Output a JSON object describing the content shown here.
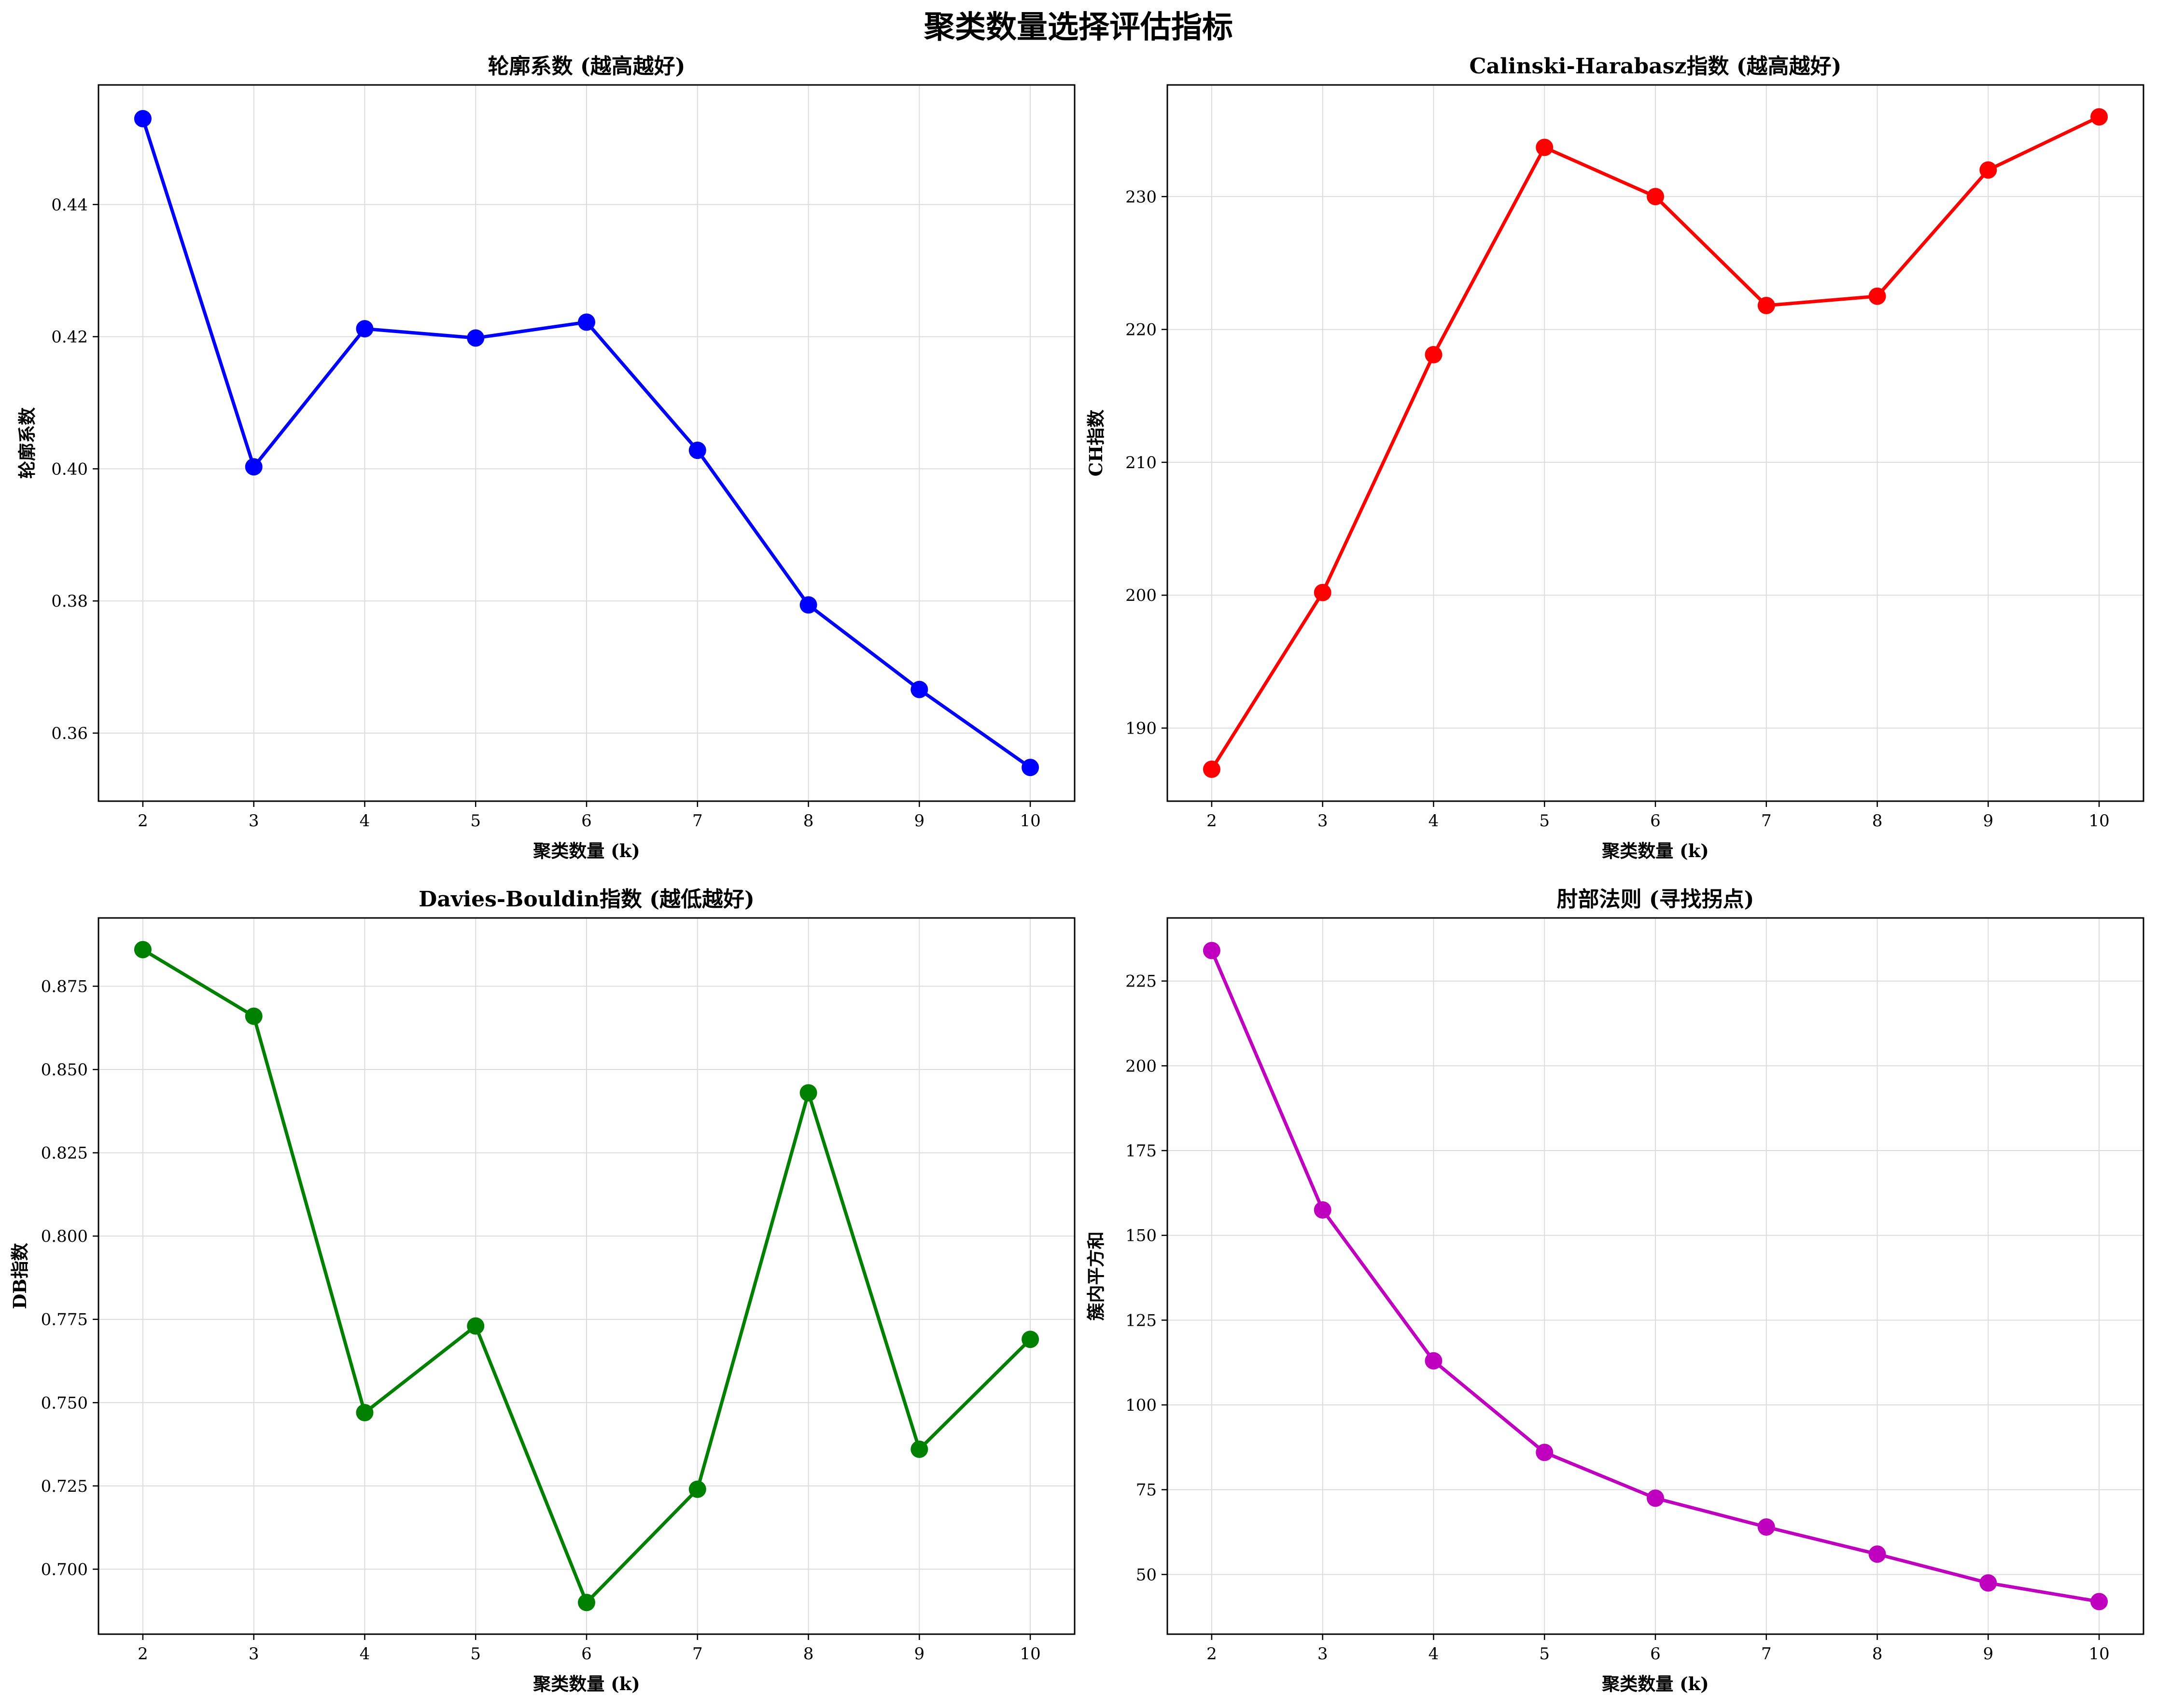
{
  "figure": {
    "title": "聚类数量选择评估指标"
  },
  "chart_data": [
    {
      "type": "line",
      "title": "轮廓系数 (越高越好)",
      "xlabel": "聚类数量 (k)",
      "ylabel": "轮廓系数",
      "color": "#0000ff",
      "x": [
        2,
        3,
        4,
        5,
        6,
        7,
        8,
        9,
        10
      ],
      "values": [
        0.453,
        0.4003,
        0.4212,
        0.4198,
        0.4222,
        0.4028,
        0.3794,
        0.3666,
        0.3548
      ],
      "xlim": [
        1.6,
        10.4
      ],
      "ylim": [
        0.3497,
        0.4581
      ],
      "yticks": [
        0.36,
        0.38,
        0.4,
        0.42,
        0.44
      ],
      "ytick_labels": [
        "0.36",
        "0.38",
        "0.40",
        "0.42",
        "0.44"
      ],
      "xticks": [
        2,
        3,
        4,
        5,
        6,
        7,
        8,
        9,
        10
      ],
      "grid": true
    },
    {
      "type": "line",
      "title": "Calinski-Harabasz指数 (越高越好)",
      "xlabel": "聚类数量 (k)",
      "ylabel": "CH指数",
      "color": "#ff0000",
      "x": [
        2,
        3,
        4,
        5,
        6,
        7,
        8,
        9,
        10
      ],
      "values": [
        186.9,
        200.2,
        218.1,
        233.7,
        230.0,
        221.8,
        222.5,
        232.0,
        236.0
      ],
      "xlim": [
        1.6,
        10.4
      ],
      "ylim": [
        184.5,
        238.4
      ],
      "yticks": [
        190,
        200,
        210,
        220,
        230
      ],
      "ytick_labels": [
        "190",
        "200",
        "210",
        "220",
        "230"
      ],
      "xticks": [
        2,
        3,
        4,
        5,
        6,
        7,
        8,
        9,
        10
      ],
      "grid": true
    },
    {
      "type": "line",
      "title": "Davies-Bouldin指数 (越低越好)",
      "xlabel": "聚类数量 (k)",
      "ylabel": "DB指数",
      "color": "#008000",
      "x": [
        2,
        3,
        4,
        5,
        6,
        7,
        8,
        9,
        10
      ],
      "values": [
        0.886,
        0.866,
        0.747,
        0.773,
        0.69,
        0.724,
        0.843,
        0.736,
        0.769
      ],
      "xlim": [
        1.6,
        10.4
      ],
      "ylim": [
        0.6805,
        0.8955
      ],
      "yticks": [
        0.7,
        0.725,
        0.75,
        0.775,
        0.8,
        0.825,
        0.85,
        0.875
      ],
      "ytick_labels": [
        "0.700",
        "0.725",
        "0.750",
        "0.775",
        "0.800",
        "0.825",
        "0.850",
        "0.875"
      ],
      "xticks": [
        2,
        3,
        4,
        5,
        6,
        7,
        8,
        9,
        10
      ],
      "grid": true
    },
    {
      "type": "line",
      "title": "肘部法则 (寻找拐点)",
      "xlabel": "聚类数量 (k)",
      "ylabel": "簇内平方和",
      "color": "#bf00bf",
      "x": [
        2,
        3,
        4,
        5,
        6,
        7,
        8,
        9,
        10
      ],
      "values": [
        234.0,
        157.5,
        113.0,
        86.0,
        72.5,
        64.0,
        56.0,
        47.5,
        42.0
      ],
      "xlim": [
        1.6,
        10.4
      ],
      "ylim": [
        32.4,
        243.6
      ],
      "yticks": [
        50,
        75,
        100,
        125,
        150,
        175,
        200,
        225
      ],
      "ytick_labels": [
        "50",
        "75",
        "100",
        "125",
        "150",
        "175",
        "200",
        "225"
      ],
      "xticks": [
        2,
        3,
        4,
        5,
        6,
        7,
        8,
        9,
        10
      ],
      "grid": true
    }
  ]
}
